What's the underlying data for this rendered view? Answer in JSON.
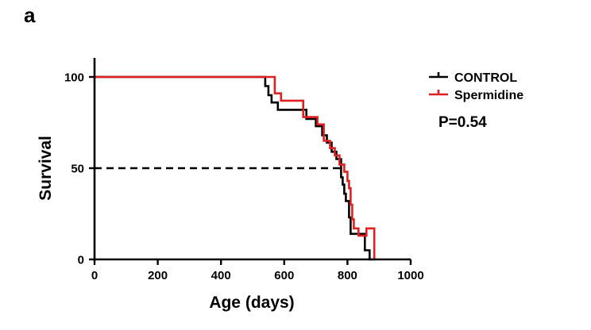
{
  "panel_label": "a",
  "chart_data": {
    "type": "line",
    "subtype": "kaplan-meier-survival",
    "xlabel": "Age (days)",
    "ylabel": "Survival",
    "xlim": [
      0,
      1000
    ],
    "ylim": [
      0,
      100
    ],
    "xticks": [
      0,
      200,
      400,
      600,
      800,
      1000
    ],
    "yticks": [
      0,
      50,
      100
    ],
    "grid": false,
    "legend_position": "top-right",
    "annotation": "P=0.54",
    "reference_line": {
      "y": 50,
      "style": "dashed",
      "color": "#000000"
    },
    "series": [
      {
        "name": "CONTROL",
        "color": "#000000",
        "steps": [
          [
            0,
            100
          ],
          [
            540,
            100
          ],
          [
            540,
            95
          ],
          [
            550,
            95
          ],
          [
            550,
            90
          ],
          [
            560,
            90
          ],
          [
            560,
            86
          ],
          [
            580,
            86
          ],
          [
            580,
            82
          ],
          [
            670,
            82
          ],
          [
            670,
            77
          ],
          [
            700,
            77
          ],
          [
            700,
            73
          ],
          [
            720,
            73
          ],
          [
            720,
            68
          ],
          [
            735,
            68
          ],
          [
            735,
            64
          ],
          [
            750,
            64
          ],
          [
            750,
            59
          ],
          [
            765,
            59
          ],
          [
            765,
            55
          ],
          [
            780,
            55
          ],
          [
            780,
            45
          ],
          [
            785,
            45
          ],
          [
            785,
            41
          ],
          [
            790,
            41
          ],
          [
            790,
            36
          ],
          [
            795,
            36
          ],
          [
            795,
            32
          ],
          [
            805,
            32
          ],
          [
            805,
            23
          ],
          [
            810,
            23
          ],
          [
            810,
            14
          ],
          [
            855,
            14
          ],
          [
            855,
            5
          ],
          [
            870,
            5
          ],
          [
            870,
            0
          ],
          [
            880,
            0
          ]
        ]
      },
      {
        "name": "Spermidine",
        "color": "#e02020",
        "steps": [
          [
            0,
            100
          ],
          [
            570,
            100
          ],
          [
            570,
            91
          ],
          [
            590,
            91
          ],
          [
            590,
            87
          ],
          [
            660,
            87
          ],
          [
            660,
            78
          ],
          [
            705,
            78
          ],
          [
            705,
            74
          ],
          [
            725,
            74
          ],
          [
            725,
            65
          ],
          [
            745,
            65
          ],
          [
            745,
            61
          ],
          [
            760,
            61
          ],
          [
            760,
            57
          ],
          [
            775,
            57
          ],
          [
            775,
            52
          ],
          [
            790,
            52
          ],
          [
            790,
            48
          ],
          [
            800,
            48
          ],
          [
            800,
            43
          ],
          [
            805,
            43
          ],
          [
            805,
            39
          ],
          [
            810,
            39
          ],
          [
            810,
            30
          ],
          [
            815,
            30
          ],
          [
            815,
            22
          ],
          [
            820,
            22
          ],
          [
            820,
            17
          ],
          [
            835,
            17
          ],
          [
            835,
            13
          ],
          [
            860,
            13
          ],
          [
            860,
            17
          ],
          [
            885,
            17
          ],
          [
            885,
            0
          ],
          [
            890,
            0
          ]
        ]
      }
    ]
  }
}
